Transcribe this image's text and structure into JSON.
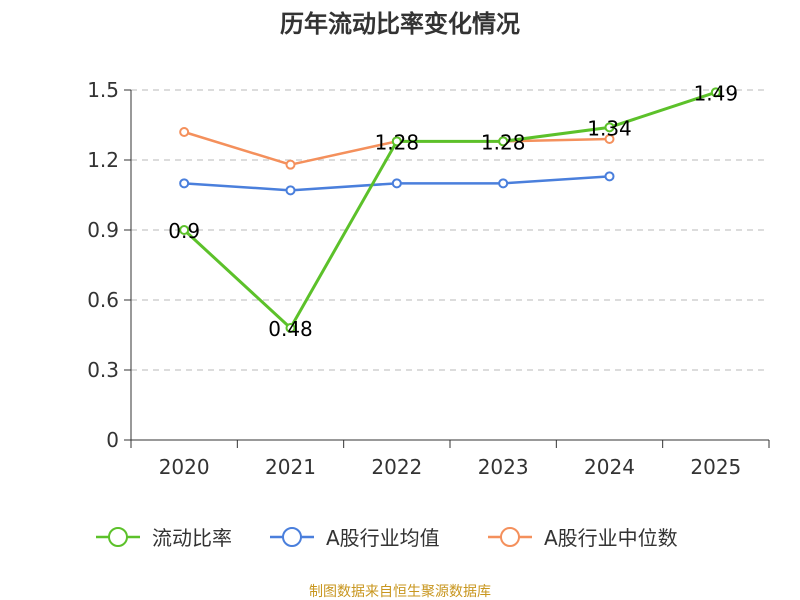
{
  "chart_data": {
    "type": "line",
    "title": "历年流动比率变化情况",
    "categories": [
      "2020",
      "2021",
      "2022",
      "2023",
      "2024",
      "2025"
    ],
    "ylim": [
      0,
      1.5
    ],
    "yticks": [
      "0",
      "0.3",
      "0.6",
      "0.9",
      "1.2",
      "1.5"
    ],
    "grid": true,
    "legend_position": "bottom",
    "series": [
      {
        "name": "流动比率",
        "color": "#5cc12a",
        "values": [
          0.9,
          0.48,
          1.28,
          1.28,
          1.34,
          1.49
        ],
        "labels": [
          "0.9",
          "0.48",
          "1.28",
          "1.28",
          "1.34",
          "1.49"
        ]
      },
      {
        "name": "A股行业均值",
        "color": "#4a7fdc",
        "values": [
          1.1,
          1.07,
          1.1,
          1.1,
          1.13,
          null
        ]
      },
      {
        "name": "A股行业中位数",
        "color": "#f4905c",
        "values": [
          1.32,
          1.18,
          1.28,
          1.28,
          1.29,
          null
        ]
      }
    ],
    "source": "制图数据来自恒生聚源数据库",
    "source_color": "#c8961e"
  }
}
